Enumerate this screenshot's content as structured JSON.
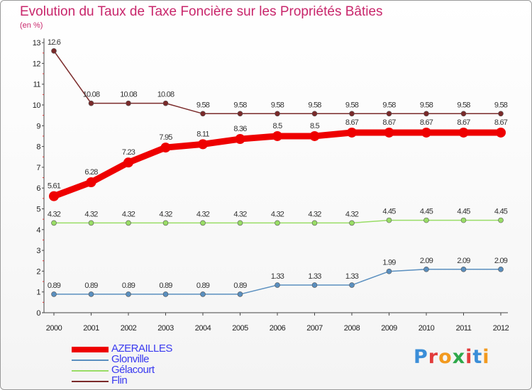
{
  "title": "Evolution du Taux de Taxe Foncière sur les Propriétés Bâties",
  "unit": "(en %)",
  "logo": {
    "text": "Proxiti",
    "letter_colors": [
      "#3b8ed8",
      "#e23b3b",
      "#f29a1f",
      "#2ea84a",
      "#e23b3b",
      "#3b8ed8",
      "#f29a1f"
    ]
  },
  "chart_data": {
    "type": "line",
    "title": "Evolution du Taux de Taxe Foncière sur les Propriétés Bâties",
    "ylabel": "(en %)",
    "xlabel": "",
    "x": [
      "2000",
      "2001",
      "2002",
      "2003",
      "2004",
      "2005",
      "2006",
      "2007",
      "2008",
      "2009",
      "2010",
      "2011",
      "2012"
    ],
    "ylim": [
      0,
      13
    ],
    "yticks": [
      "0",
      "1",
      "2",
      "3",
      "4",
      "5",
      "6",
      "7",
      "8",
      "9",
      "10",
      "11",
      "12",
      "13"
    ],
    "grid": false,
    "legend": "bottom-left",
    "series": [
      {
        "name": "AZERAILLES",
        "color": "#ee0000",
        "values": [
          5.61,
          6.28,
          7.23,
          7.95,
          8.11,
          8.36,
          8.5,
          8.5,
          8.67,
          8.67,
          8.67,
          8.67,
          8.67
        ],
        "labels": [
          "5.61",
          "6.28",
          "7.23",
          "7.95",
          "8.11",
          "8.36",
          "8.5",
          "8.5",
          "8.67",
          "8.67",
          "8.67",
          "8.67",
          "8.67"
        ]
      },
      {
        "name": "Glonville",
        "color": "#5a8fbf",
        "values": [
          0.89,
          0.89,
          0.89,
          0.89,
          0.89,
          0.89,
          1.33,
          1.33,
          1.33,
          1.99,
          2.09,
          2.09,
          2.09
        ],
        "labels": [
          "0.89",
          "0.89",
          "0.89",
          "0.89",
          "0.89",
          "0.89",
          "1.33",
          "1.33",
          "1.33",
          "1.99",
          "2.09",
          "2.09",
          "2.09"
        ]
      },
      {
        "name": "Gélacourt",
        "color": "#99dd66",
        "values": [
          4.32,
          4.32,
          4.32,
          4.32,
          4.32,
          4.32,
          4.32,
          4.32,
          4.32,
          4.45,
          4.45,
          4.45,
          4.45
        ],
        "labels": [
          "4.32",
          "4.32",
          "4.32",
          "4.32",
          "4.32",
          "4.32",
          "4.32",
          "4.32",
          "4.32",
          "4.45",
          "4.45",
          "4.45",
          "4.45"
        ]
      },
      {
        "name": "Flin",
        "color": "#7a2a2a",
        "values": [
          12.6,
          10.08,
          10.08,
          10.08,
          9.58,
          9.58,
          9.58,
          9.58,
          9.58,
          9.58,
          9.58,
          9.58,
          9.58
        ],
        "labels": [
          "12.6",
          "10.08",
          "10.08",
          "10.08",
          "9.58",
          "9.58",
          "9.58",
          "9.58",
          "9.58",
          "9.58",
          "9.58",
          "9.58",
          "9.58"
        ]
      }
    ]
  }
}
